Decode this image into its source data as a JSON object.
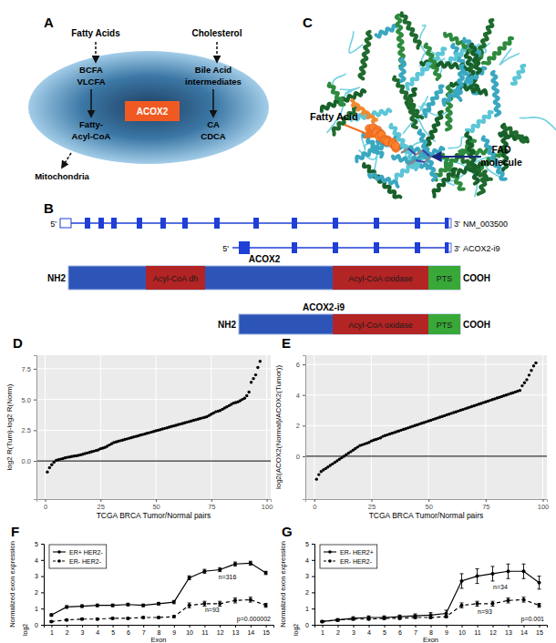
{
  "diagrams": {
    "A": {
      "label": "A",
      "inputs": [
        "Fatty Acids",
        "Cholesterol"
      ],
      "left": [
        "BCFA",
        "VLCFA"
      ],
      "right": [
        "Bile Acid",
        "intermediates"
      ],
      "center": "ACOX2",
      "left_products": [
        "Fatty-",
        "Acyl-CoA"
      ],
      "right_products": [
        "CA",
        "CDCA"
      ],
      "output": "Mitochondria"
    },
    "B": {
      "label": "B",
      "transcripts": [
        {
          "name": "NM_003500",
          "five": "5'",
          "three": "3'"
        },
        {
          "name": "ACOX2-i9",
          "five": "5'",
          "three": "3'"
        }
      ],
      "proteins": [
        {
          "name": "ACOX2",
          "n": "NH2",
          "c": "COOH",
          "domains": [
            "Acyl-CoA dh",
            "Acyl-CoA oxidase",
            "PTS"
          ]
        },
        {
          "name": "ACOX2-i9",
          "n": "NH2",
          "c": "COOH",
          "domains": [
            "Acyl-CoA oxidase",
            "PTS"
          ]
        }
      ]
    },
    "C": {
      "label": "C",
      "labels": [
        "Fatty Acid",
        "FAD",
        "molecule"
      ]
    }
  },
  "chart_data": [
    {
      "type": "scatter",
      "panel_label": "D",
      "x_label": "TCGA BRCA Tumor/Normal pairs",
      "y_label": "log2 R(Tum)-log2 R(Norm)",
      "grid": true,
      "color": "#000000",
      "marker": "circle",
      "xlim": [
        -3.9,
        101.8
      ],
      "xticks": [
        0,
        25,
        50,
        75,
        100
      ],
      "ylim": [
        -3.1,
        8.6
      ],
      "yticks": [
        {
          "value": 0,
          "label": "0.0"
        },
        {
          "value": 2.5,
          "label": "2.5"
        },
        {
          "value": 5,
          "label": "5.0"
        },
        {
          "value": 7.5,
          "label": "7.5"
        }
      ],
      "reference_line": 0,
      "x": [
        1,
        2,
        3,
        4,
        5,
        6,
        7,
        8,
        9,
        10,
        11,
        12,
        13,
        14,
        15,
        16,
        17,
        18,
        19,
        20,
        21,
        22,
        23,
        24,
        25,
        26,
        27,
        28,
        29,
        30,
        31,
        32,
        33,
        34,
        35,
        36,
        37,
        38,
        39,
        40,
        41,
        42,
        43,
        44,
        45,
        46,
        47,
        48,
        49,
        50,
        51,
        52,
        53,
        54,
        55,
        56,
        57,
        58,
        59,
        60,
        61,
        62,
        63,
        64,
        65,
        66,
        67,
        68,
        69,
        70,
        71,
        72,
        73,
        74,
        75,
        76,
        77,
        78,
        79,
        80,
        81,
        82,
        83,
        84,
        85,
        86,
        87,
        88,
        89,
        90,
        91,
        92,
        93,
        94,
        95,
        96,
        97
      ],
      "values": [
        -0.9,
        -0.55,
        -0.3,
        -0.1,
        0.05,
        0.1,
        0.15,
        0.2,
        0.25,
        0.3,
        0.33,
        0.36,
        0.4,
        0.42,
        0.45,
        0.5,
        0.55,
        0.6,
        0.65,
        0.7,
        0.75,
        0.8,
        0.85,
        0.9,
        1.0,
        1.05,
        1.1,
        1.2,
        1.3,
        1.4,
        1.5,
        1.55,
        1.6,
        1.65,
        1.7,
        1.75,
        1.8,
        1.85,
        1.9,
        1.95,
        2.0,
        2.05,
        2.1,
        2.15,
        2.2,
        2.25,
        2.3,
        2.35,
        2.4,
        2.45,
        2.5,
        2.55,
        2.6,
        2.65,
        2.7,
        2.75,
        2.8,
        2.85,
        2.9,
        2.95,
        3.0,
        3.05,
        3.1,
        3.15,
        3.2,
        3.25,
        3.3,
        3.35,
        3.4,
        3.45,
        3.5,
        3.55,
        3.6,
        3.7,
        3.8,
        3.9,
        4.0,
        4.05,
        4.1,
        4.2,
        4.3,
        4.4,
        4.5,
        4.6,
        4.7,
        4.75,
        4.8,
        4.9,
        5.0,
        5.1,
        5.3,
        5.6,
        6.4,
        6.7,
        7.0,
        7.6,
        8.1
      ]
    },
    {
      "type": "scatter",
      "panel_label": "E",
      "x_label": "TCGA BRCA Tumor/Normal pairs",
      "y_label": "log2(ACOX2(Normal)/ACOX2(Tumor))",
      "grid": true,
      "color": "#000000",
      "marker": "circle",
      "xlim": [
        -3.9,
        101.8
      ],
      "xticks": [
        0,
        25,
        50,
        75,
        100
      ],
      "ylim": [
        -2.8,
        6.6
      ],
      "yticks": [
        0,
        2,
        4,
        6
      ],
      "reference_line": 0,
      "x": [
        1,
        2,
        3,
        4,
        5,
        6,
        7,
        8,
        9,
        10,
        11,
        12,
        13,
        14,
        15,
        16,
        17,
        18,
        19,
        20,
        21,
        22,
        23,
        24,
        25,
        26,
        27,
        28,
        29,
        30,
        31,
        32,
        33,
        34,
        35,
        36,
        37,
        38,
        39,
        40,
        41,
        42,
        43,
        44,
        45,
        46,
        47,
        48,
        49,
        50,
        51,
        52,
        53,
        54,
        55,
        56,
        57,
        58,
        59,
        60,
        61,
        62,
        63,
        64,
        65,
        66,
        67,
        68,
        69,
        70,
        71,
        72,
        73,
        74,
        75,
        76,
        77,
        78,
        79,
        80,
        81,
        82,
        83,
        84,
        85,
        86,
        87,
        88,
        89,
        90,
        91,
        92,
        93,
        94,
        95,
        96,
        97
      ],
      "values": [
        -1.5,
        -1.2,
        -1.0,
        -0.9,
        -0.8,
        -0.7,
        -0.6,
        -0.5,
        -0.4,
        -0.3,
        -0.2,
        -0.1,
        0,
        0.1,
        0.2,
        0.3,
        0.4,
        0.5,
        0.6,
        0.7,
        0.75,
        0.8,
        0.85,
        0.9,
        1.0,
        1.05,
        1.1,
        1.15,
        1.2,
        1.3,
        1.35,
        1.4,
        1.45,
        1.5,
        1.55,
        1.6,
        1.65,
        1.7,
        1.75,
        1.8,
        1.85,
        1.9,
        1.95,
        2.0,
        2.05,
        2.1,
        2.15,
        2.2,
        2.25,
        2.3,
        2.35,
        2.4,
        2.45,
        2.5,
        2.55,
        2.6,
        2.65,
        2.7,
        2.75,
        2.8,
        2.85,
        2.9,
        2.95,
        3.0,
        3.05,
        3.1,
        3.15,
        3.2,
        3.25,
        3.3,
        3.35,
        3.4,
        3.45,
        3.5,
        3.55,
        3.6,
        3.65,
        3.7,
        3.75,
        3.8,
        3.85,
        3.9,
        3.95,
        4.0,
        4.05,
        4.1,
        4.15,
        4.2,
        4.25,
        4.3,
        4.6,
        4.8,
        5.0,
        5.3,
        5.6,
        5.9,
        6.1
      ]
    },
    {
      "type": "line",
      "panel_label": "F",
      "x_label": "Exon",
      "y_label": "Normalized exon expression",
      "legend": "top-left",
      "annotations": [
        "log2",
        "n=316",
        "n=93",
        "p=0.000002"
      ],
      "xlim": [
        0.5,
        15.5
      ],
      "xticks": [
        1,
        2,
        3,
        4,
        5,
        6,
        7,
        8,
        9,
        10,
        11,
        12,
        13,
        14,
        15
      ],
      "ylim": [
        0,
        5
      ],
      "yticks": [
        0,
        1,
        2,
        3,
        4,
        5
      ],
      "x": [
        1,
        2,
        3,
        4,
        5,
        6,
        7,
        8,
        9,
        10,
        11,
        12,
        13,
        14,
        15
      ],
      "series": [
        {
          "name": "ER+ HER2-",
          "color": "#000000",
          "line_style": "solid",
          "marker": "circle",
          "values": [
            0.6,
            1.1,
            1.15,
            1.2,
            1.2,
            1.25,
            1.2,
            1.3,
            1.4,
            2.9,
            3.3,
            3.4,
            3.75,
            3.8,
            3.2
          ],
          "errors": [
            0.08,
            0.08,
            0.08,
            0.08,
            0.08,
            0.08,
            0.08,
            0.08,
            0.1,
            0.12,
            0.12,
            0.12,
            0.12,
            0.12,
            0.1
          ]
        },
        {
          "name": "ER- HER2-",
          "color": "#000000",
          "line_style": "dashed",
          "marker": "circle",
          "values": [
            0.2,
            0.3,
            0.35,
            0.35,
            0.4,
            0.4,
            0.45,
            0.45,
            0.5,
            1.2,
            1.3,
            1.3,
            1.5,
            1.55,
            1.2
          ],
          "errors": [
            0.05,
            0.05,
            0.05,
            0.05,
            0.05,
            0.05,
            0.05,
            0.05,
            0.06,
            0.15,
            0.15,
            0.15,
            0.15,
            0.15,
            0.12
          ]
        }
      ]
    },
    {
      "type": "line",
      "panel_label": "G",
      "x_label": "Exon",
      "y_label": "Normalized exon expression",
      "legend": "top-left",
      "annotations": [
        "log2",
        "n=34",
        "n=93",
        "p=0.001"
      ],
      "xlim": [
        0.5,
        15.5
      ],
      "xticks": [
        1,
        2,
        3,
        4,
        5,
        6,
        7,
        8,
        9,
        10,
        11,
        12,
        13,
        14,
        15
      ],
      "ylim": [
        0,
        5
      ],
      "yticks": [
        0,
        1,
        2,
        3,
        4,
        5
      ],
      "x": [
        1,
        2,
        3,
        4,
        5,
        6,
        7,
        8,
        9,
        10,
        11,
        12,
        13,
        14,
        15
      ],
      "series": [
        {
          "name": "ER- HER2+",
          "color": "#000000",
          "line_style": "solid",
          "marker": "circle",
          "values": [
            0.2,
            0.3,
            0.4,
            0.45,
            0.45,
            0.5,
            0.55,
            0.6,
            0.7,
            2.7,
            3.0,
            3.15,
            3.3,
            3.3,
            2.6
          ],
          "errors": [
            0.05,
            0.08,
            0.1,
            0.1,
            0.1,
            0.1,
            0.12,
            0.15,
            0.2,
            0.45,
            0.45,
            0.45,
            0.45,
            0.45,
            0.4
          ]
        },
        {
          "name": "ER- HER2-",
          "color": "#000000",
          "line_style": "dashed",
          "marker": "circle",
          "values": [
            0.2,
            0.3,
            0.35,
            0.35,
            0.4,
            0.4,
            0.45,
            0.45,
            0.5,
            1.2,
            1.3,
            1.3,
            1.5,
            1.55,
            1.2
          ],
          "errors": [
            0.05,
            0.05,
            0.05,
            0.05,
            0.05,
            0.05,
            0.05,
            0.05,
            0.06,
            0.15,
            0.15,
            0.15,
            0.15,
            0.15,
            0.12
          ]
        }
      ]
    }
  ]
}
